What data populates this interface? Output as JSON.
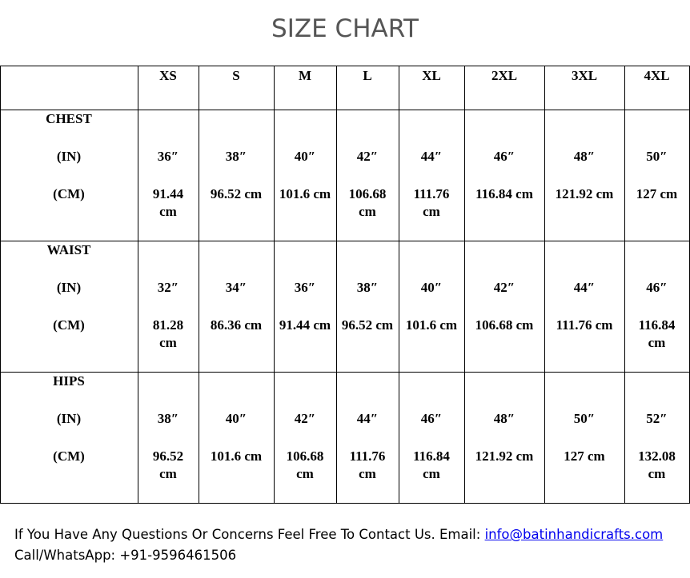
{
  "title": "SIZE CHART",
  "table": {
    "header": [
      "XS",
      "S",
      "M",
      "L",
      "XL",
      "2XL",
      "3XL",
      "4XL"
    ],
    "rows": [
      {
        "label": "CHEST",
        "units": [
          "(IN)",
          "(CM)"
        ],
        "inches": [
          "36″",
          "38″",
          "40″",
          "42″",
          "44″",
          "46″",
          "48″",
          "50″"
        ],
        "cm": [
          "91.44 cm",
          "96.52 cm",
          "101.6 cm",
          "106.68 cm",
          "111.76 cm",
          "116.84 cm",
          "121.92 cm",
          "127 cm"
        ]
      },
      {
        "label": "WAIST",
        "units": [
          "(IN)",
          "(CM)"
        ],
        "inches": [
          "32″",
          "34″",
          "36″",
          "38″",
          "40″",
          "42″",
          "44″",
          "46″"
        ],
        "cm": [
          "81.28 cm",
          "86.36 cm",
          "91.44 cm",
          "96.52 cm",
          "101.6 cm",
          "106.68 cm",
          "111.76 cm",
          "116.84 cm"
        ]
      },
      {
        "label": "HIPS",
        "units": [
          "(IN)",
          "(CM)"
        ],
        "inches": [
          "38″",
          "40″",
          "42″",
          "44″",
          "46″",
          "48″",
          "50″",
          "52″"
        ],
        "cm": [
          "96.52 cm",
          "101.6 cm",
          "106.68 cm",
          "111.76 cm",
          "116.84 cm",
          "121.92 cm",
          "127 cm",
          "132.08 cm"
        ]
      }
    ]
  },
  "footer": {
    "text": "If You Have Any Questions Or Concerns Feel Free To Contact Us. Email:",
    "email": "info@batinhandicrafts.com",
    "phone_label": "Call/WhatsApp:",
    "phone": "+91-9596461506"
  }
}
